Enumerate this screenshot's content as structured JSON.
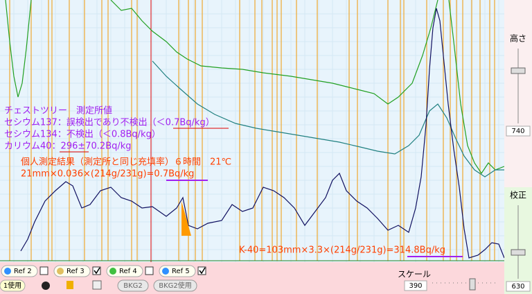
{
  "annotations": {
    "measurement_station": {
      "title": "チェストツリー　測定所値",
      "cs137": "セシウム137：誤検出であり不検出（＜0.7Bq/kg）",
      "cs134": "セシウム134：不検出（＜0.8Bq/kg）",
      "k40": "カリウム40：296±70.2Bq/kg"
    },
    "personal": {
      "title": "個人測定結果（測定所と同じ充填率）６時間　21℃",
      "cs137_calc": "21mm×0.036×(214g/231g)=0.7Bq/kg",
      "k40_calc": "K-40=103mm×3.3×(214g/231g)=314.8Bq/kg"
    }
  },
  "side_panel": {
    "height_label": "高さ",
    "height_value": "740",
    "calibration_label": "校正",
    "calibration_value": "630"
  },
  "toolbar": {
    "refs": [
      "Ref 2",
      "Ref 3",
      "Ref 4",
      "Ref 5"
    ],
    "use_button": "1使用",
    "bkg2": "BKG2",
    "bkg2_use": "BKG2使用",
    "scale_label": "スケール",
    "scale_value": "390"
  }
}
